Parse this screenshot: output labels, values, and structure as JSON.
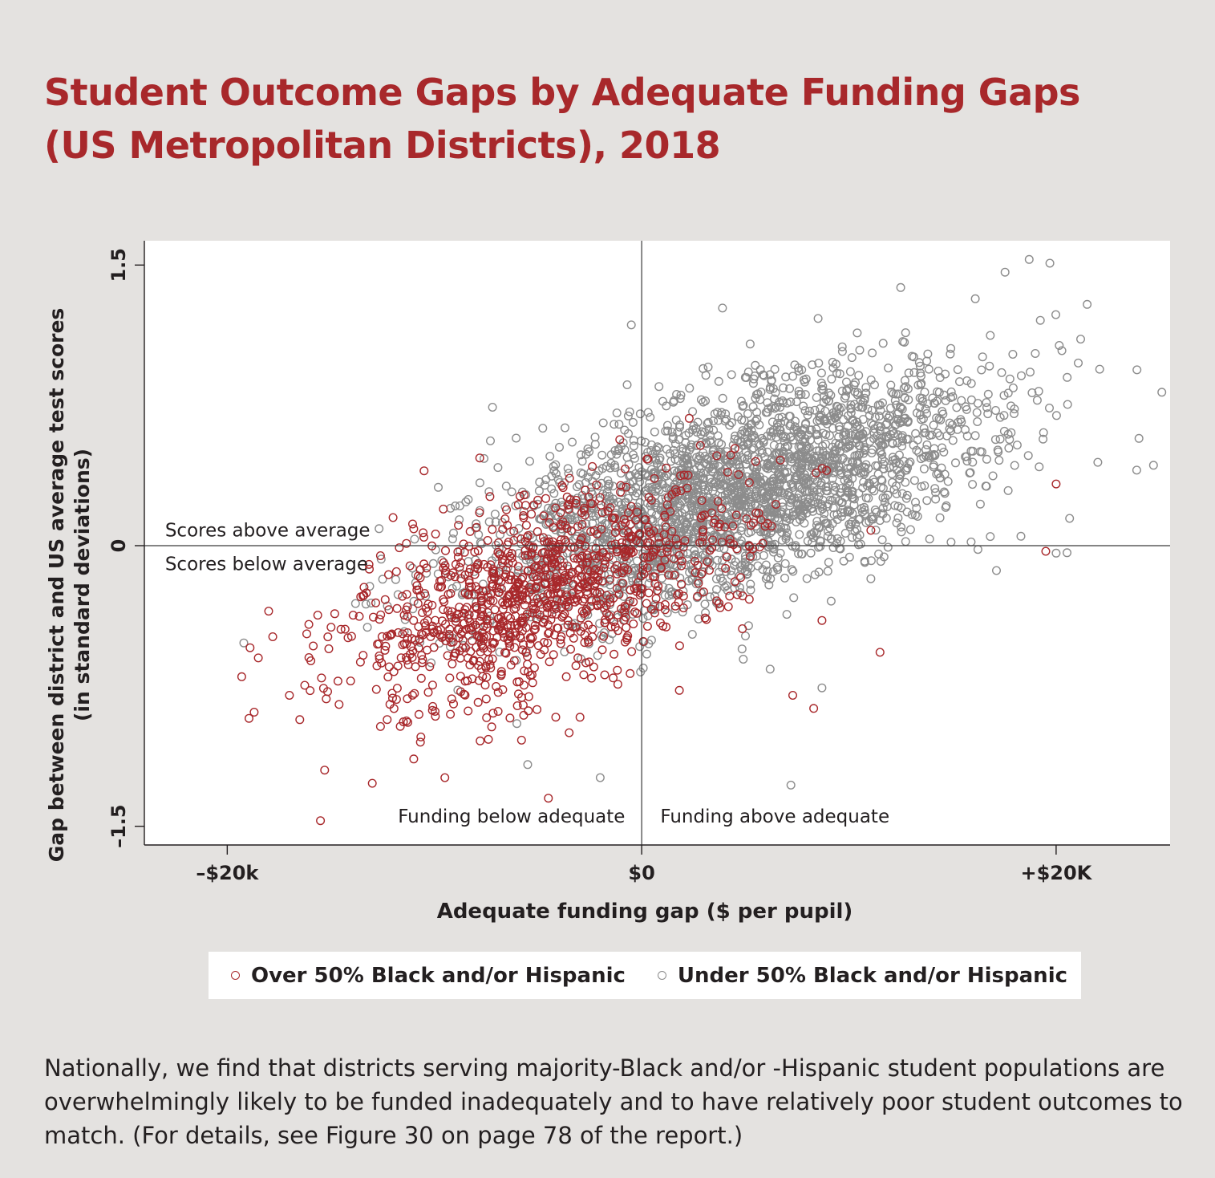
{
  "title_line1": "Student Outcome Gaps by Adequate Funding Gaps",
  "title_line2": "(US Metropolitan Districts), 2018",
  "caption": "Nationally, we find that districts serving majority-Black and/or -Hispanic student populations are overwhelmingly likely to be funded inadequately and to have relatively poor student outcomes to match. (For details, see Figure 30 on page 78 of the report.)",
  "colors": {
    "title": "#a8282b",
    "over50": "#a8282b",
    "under50": "#8c8c8c",
    "background": "#e4e2e0",
    "plot_area": "#ffffff"
  },
  "chart_data": {
    "type": "scatter",
    "xlabel": "Adequate funding gap ($ per pupil)",
    "ylabel": "Gap between district and US average test scores",
    "ylabel2": "(in standard deviations)",
    "xlim": [
      -24000,
      25500
    ],
    "ylim": [
      -1.6,
      1.63
    ],
    "x_ticks": [
      {
        "value": -20000,
        "label": "–$20k"
      },
      {
        "value": 0,
        "label": "$0"
      },
      {
        "value": 20000,
        "label": "+$20K"
      }
    ],
    "y_ticks": [
      {
        "value": 1.5,
        "label": "1.5"
      },
      {
        "value": 0,
        "label": "0"
      },
      {
        "value": -1.5,
        "label": "–1.5"
      }
    ],
    "reference_lines": {
      "x": 0,
      "y": 0
    },
    "grid": false,
    "legend_position": "bottom",
    "annotations": [
      {
        "text": "Scores above average",
        "x": -23000,
        "y": 0.05
      },
      {
        "text": "Scores below average",
        "x": -23000,
        "y": -0.13
      },
      {
        "text": "Funding below adequate",
        "x": -800,
        "y": -1.48
      },
      {
        "text": "Funding above adequate",
        "x": 900,
        "y": -1.48
      }
    ],
    "series": [
      {
        "name": "Over 50% Black and/or Hispanic",
        "color": "#a8282b",
        "approx_points": 1150,
        "points": [
          [
            -10500,
            0.4
          ],
          [
            -12000,
            0.15
          ],
          [
            -11000,
            0.09
          ],
          [
            -18000,
            -0.35
          ],
          [
            -18500,
            -0.6
          ],
          [
            -18700,
            -0.89
          ],
          [
            -17000,
            -0.8
          ],
          [
            -15500,
            -1.47
          ],
          [
            -15300,
            -1.2
          ],
          [
            -16500,
            -0.93
          ],
          [
            -13000,
            -1.27
          ],
          [
            -11000,
            -1.14
          ],
          [
            -9500,
            -1.24
          ],
          [
            -5800,
            -1.04
          ],
          [
            -4500,
            -1.35
          ],
          [
            -3500,
            -1.0
          ],
          [
            11500,
            -0.57
          ],
          [
            8300,
            -0.87
          ],
          [
            8700,
            -0.4
          ],
          [
            19500,
            -0.03
          ],
          [
            20000,
            0.33
          ],
          [
            4500,
            0.52
          ],
          [
            5500,
            0.45
          ],
          [
            3500,
            0.12
          ]
        ]
      },
      {
        "name": "Under 50% Black and/or Hispanic",
        "color": "#8c8c8c",
        "approx_points": 2700,
        "points": [
          [
            18700,
            1.53
          ],
          [
            19700,
            1.51
          ],
          [
            12500,
            1.38
          ],
          [
            16100,
            1.32
          ],
          [
            21500,
            1.29
          ],
          [
            3900,
            1.27
          ],
          [
            -500,
            1.18
          ],
          [
            -700,
            0.86
          ],
          [
            -7200,
            0.74
          ],
          [
            -7300,
            0.56
          ],
          [
            -19200,
            -0.52
          ],
          [
            -5500,
            -1.17
          ],
          [
            -2000,
            -1.24
          ],
          [
            7200,
            -1.28
          ],
          [
            6200,
            -0.66
          ],
          [
            8700,
            -0.76
          ],
          [
            23900,
            0.94
          ],
          [
            24700,
            0.43
          ],
          [
            25100,
            0.82
          ],
          [
            18300,
            0.05
          ],
          [
            20000,
            -0.04
          ]
        ]
      }
    ]
  }
}
